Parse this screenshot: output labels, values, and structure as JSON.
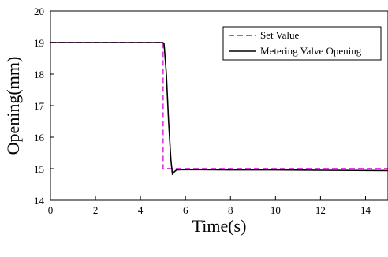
{
  "chart_data": {
    "type": "line",
    "xlabel": "Time(s)",
    "ylabel": "Opening(mm)",
    "xlim": [
      0,
      15
    ],
    "ylim": [
      14,
      20
    ],
    "xticks": [
      0,
      2,
      4,
      6,
      8,
      10,
      12,
      14
    ],
    "yticks": [
      14,
      15,
      16,
      17,
      18,
      19,
      20
    ],
    "grid": false,
    "legend_position": "top-right",
    "series": [
      {
        "name": "Set Value",
        "style": "dashed",
        "color": "#e040e0",
        "x": [
          0,
          5.0,
          5.0,
          15
        ],
        "y": [
          19,
          19,
          15,
          15
        ]
      },
      {
        "name": "Metering Valve Opening",
        "style": "solid",
        "color": "#000000",
        "x": [
          0,
          5.0,
          5.05,
          5.15,
          5.25,
          5.35,
          5.42,
          5.5,
          5.6,
          6.0,
          8.0,
          10.0,
          12.0,
          15.0
        ],
        "y": [
          19,
          19,
          18.95,
          18.0,
          16.5,
          15.3,
          14.82,
          14.9,
          14.96,
          14.97,
          14.96,
          14.96,
          14.95,
          14.94
        ]
      }
    ]
  }
}
